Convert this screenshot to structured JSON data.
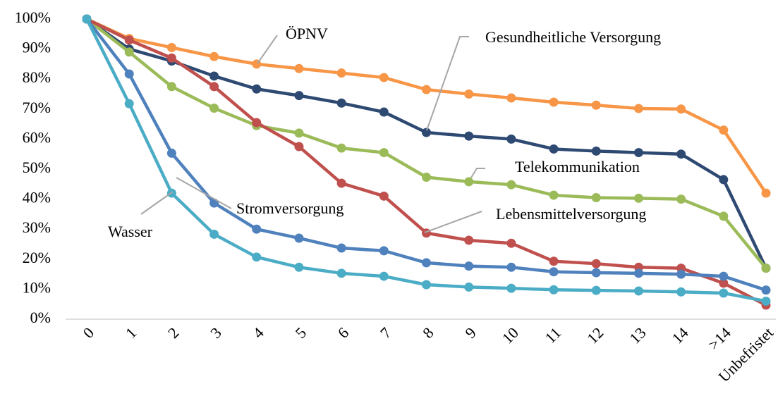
{
  "chart_data": {
    "type": "line",
    "categories": [
      "0",
      "1",
      "2",
      "3",
      "4",
      "5",
      "6",
      "7",
      "8",
      "9",
      "10",
      "11",
      "12",
      "13",
      "14",
      ">14",
      "Unbefristet"
    ],
    "series": [
      {
        "name": "ÖPNV",
        "color": "#f79646",
        "values": [
          100,
          93.5,
          90.5,
          87.5,
          85,
          83.5,
          82,
          80.5,
          76.5,
          75,
          73.7,
          72.3,
          71.3,
          70.2,
          70,
          63,
          42
        ]
      },
      {
        "name": "Gesundheitliche Versorgung",
        "color": "#2e4a72",
        "values": [
          100,
          90,
          86,
          81,
          76.7,
          74.5,
          72,
          69,
          62.2,
          61,
          60,
          56.7,
          56,
          55.5,
          55,
          46.5,
          17
        ]
      },
      {
        "name": "Telekommunikation",
        "color": "#9bbb59",
        "values": [
          100,
          89,
          77.5,
          70.3,
          64.5,
          62,
          57,
          55.5,
          47.3,
          45.8,
          44.8,
          41.3,
          40.5,
          40.3,
          40,
          34.3,
          17
        ]
      },
      {
        "name": "Lebensmittelversorgung",
        "color": "#c0504d",
        "values": [
          100,
          93,
          87,
          77.5,
          65.5,
          57.5,
          45.3,
          41,
          28.7,
          26.3,
          25.3,
          19.3,
          18.5,
          17.3,
          17,
          12,
          4.7
        ]
      },
      {
        "name": "Stromversorgung",
        "color": "#4f81bd",
        "values": [
          100,
          81.7,
          55.3,
          38.7,
          30,
          27,
          23.7,
          22.8,
          18.8,
          17.7,
          17.3,
          15.8,
          15.5,
          15.3,
          15,
          14.3,
          9.7
        ]
      },
      {
        "name": "Wasser",
        "color": "#4bacc6",
        "values": [
          100,
          71.8,
          42,
          28.3,
          20.7,
          17.3,
          15.3,
          14.3,
          11.5,
          10.7,
          10.3,
          9.8,
          9.6,
          9.4,
          9.1,
          8.7,
          6
        ]
      }
    ],
    "ylim": [
      0,
      100
    ],
    "yticks": [
      {
        "value": 0,
        "label": "0%"
      },
      {
        "value": 10,
        "label": "10%"
      },
      {
        "value": 20,
        "label": "20%"
      },
      {
        "value": 30,
        "label": "30%"
      },
      {
        "value": 40,
        "label": "40%"
      },
      {
        "value": 50,
        "label": "50%"
      },
      {
        "value": 60,
        "label": "60%"
      },
      {
        "value": 70,
        "label": "70%"
      },
      {
        "value": 80,
        "label": "80%"
      },
      {
        "value": 90,
        "label": "90%"
      },
      {
        "value": 100,
        "label": "100%"
      }
    ],
    "grid": false
  }
}
